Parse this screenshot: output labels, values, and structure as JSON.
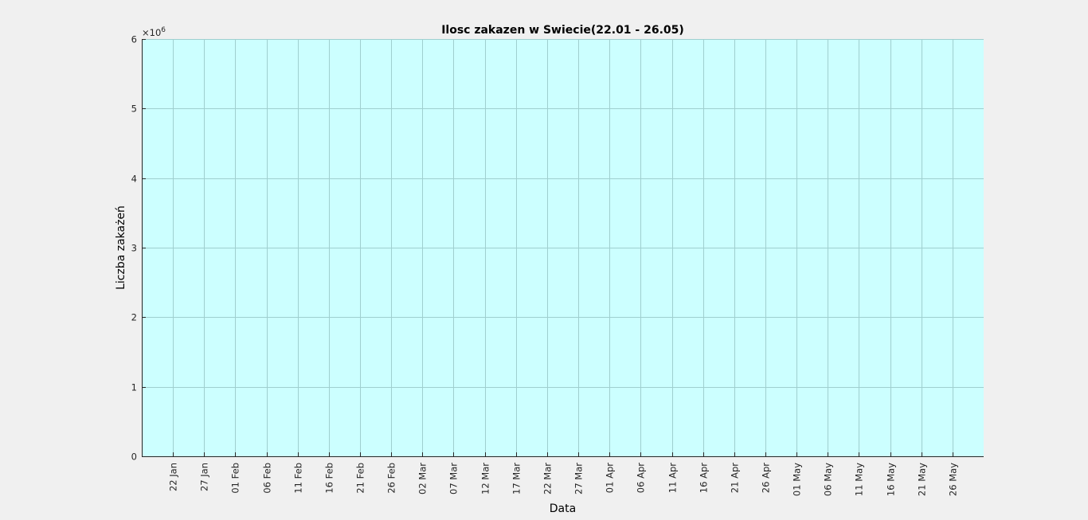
{
  "chart_data": {
    "type": "bar",
    "title": "Ilosc zakazen w Swiecie(22.01 - 26.05)",
    "xlabel": "Data",
    "ylabel": "Liczba zakażeń",
    "y_exponent_label": "×10",
    "y_exponent_power": "6",
    "ylim": [
      0,
      6
    ],
    "yticks": [
      "0",
      "1",
      "2",
      "3",
      "4",
      "5",
      "6"
    ],
    "xlim": [
      "2020-01-17",
      "2020-05-31"
    ],
    "xtick_dates": [
      "2020-01-22",
      "2020-01-27",
      "2020-02-01",
      "2020-02-06",
      "2020-02-11",
      "2020-02-16",
      "2020-02-21",
      "2020-02-26",
      "2020-03-02",
      "2020-03-07",
      "2020-03-12",
      "2020-03-17",
      "2020-03-22",
      "2020-03-27",
      "2020-04-01",
      "2020-04-06",
      "2020-04-11",
      "2020-04-16",
      "2020-04-21",
      "2020-04-26",
      "2020-05-01",
      "2020-05-06",
      "2020-05-11",
      "2020-05-16",
      "2020-05-21",
      "2020-05-26"
    ],
    "xticks": [
      "22 Jan",
      "27 Jan",
      "01 Feb",
      "06 Feb",
      "11 Feb",
      "16 Feb",
      "21 Feb",
      "26 Feb",
      "02 Mar",
      "07 Mar",
      "12 Mar",
      "17 Mar",
      "22 Mar",
      "27 Mar",
      "01 Apr",
      "06 Apr",
      "11 Apr",
      "16 Apr",
      "21 Apr",
      "26 Apr",
      "01 May",
      "06 May",
      "11 May",
      "16 May",
      "21 May",
      "26 May"
    ],
    "grid": true,
    "colors": {
      "figure_background": "#f0f0f0",
      "plot_background": "#ccffff",
      "grid": "#9fcfcf",
      "axis": "#262626"
    }
  }
}
